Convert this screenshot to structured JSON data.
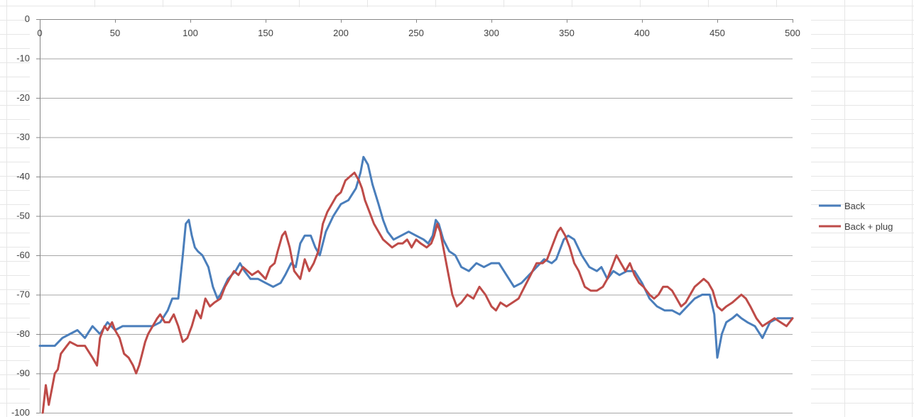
{
  "chart_data": {
    "type": "line",
    "title": "",
    "xlabel": "",
    "ylabel": "",
    "xlim": [
      0,
      500
    ],
    "ylim": [
      -100,
      0
    ],
    "x_ticks": [
      0,
      50,
      100,
      150,
      200,
      250,
      300,
      350,
      400,
      450,
      500
    ],
    "y_ticks": [
      0,
      -10,
      -20,
      -30,
      -40,
      -50,
      -60,
      -70,
      -80,
      -90,
      -100
    ],
    "x_axis_position": "top",
    "grid": true,
    "legend_position": "right",
    "series": [
      {
        "name": "Back",
        "color": "#4a7ebb",
        "points": [
          [
            0,
            -83
          ],
          [
            5,
            -83
          ],
          [
            10,
            -83
          ],
          [
            15,
            -81
          ],
          [
            20,
            -80
          ],
          [
            25,
            -79
          ],
          [
            30,
            -81
          ],
          [
            35,
            -78
          ],
          [
            40,
            -80
          ],
          [
            45,
            -77
          ],
          [
            50,
            -79
          ],
          [
            55,
            -78
          ],
          [
            60,
            -78
          ],
          [
            65,
            -78
          ],
          [
            70,
            -78
          ],
          [
            75,
            -78
          ],
          [
            80,
            -77
          ],
          [
            85,
            -74
          ],
          [
            88,
            -71
          ],
          [
            92,
            -71
          ],
          [
            95,
            -60
          ],
          [
            97,
            -52
          ],
          [
            99,
            -51
          ],
          [
            101,
            -55
          ],
          [
            103,
            -58
          ],
          [
            105,
            -59
          ],
          [
            108,
            -60
          ],
          [
            112,
            -63
          ],
          [
            115,
            -68
          ],
          [
            118,
            -71
          ],
          [
            120,
            -70
          ],
          [
            125,
            -66
          ],
          [
            130,
            -64
          ],
          [
            133,
            -62
          ],
          [
            136,
            -64
          ],
          [
            140,
            -66
          ],
          [
            145,
            -66
          ],
          [
            150,
            -67
          ],
          [
            155,
            -68
          ],
          [
            160,
            -67
          ],
          [
            163,
            -65
          ],
          [
            167,
            -62
          ],
          [
            170,
            -63
          ],
          [
            173,
            -57
          ],
          [
            176,
            -55
          ],
          [
            180,
            -55
          ],
          [
            183,
            -58
          ],
          [
            186,
            -60
          ],
          [
            190,
            -54
          ],
          [
            195,
            -50
          ],
          [
            200,
            -47
          ],
          [
            205,
            -46
          ],
          [
            210,
            -43
          ],
          [
            213,
            -39
          ],
          [
            215,
            -35
          ],
          [
            218,
            -37
          ],
          [
            221,
            -42
          ],
          [
            225,
            -47
          ],
          [
            228,
            -51
          ],
          [
            231,
            -54
          ],
          [
            235,
            -56
          ],
          [
            240,
            -55
          ],
          [
            245,
            -54
          ],
          [
            250,
            -55
          ],
          [
            255,
            -56
          ],
          [
            258,
            -57
          ],
          [
            261,
            -55
          ],
          [
            263,
            -51
          ],
          [
            265,
            -52
          ],
          [
            268,
            -56
          ],
          [
            272,
            -59
          ],
          [
            276,
            -60
          ],
          [
            280,
            -63
          ],
          [
            285,
            -64
          ],
          [
            290,
            -62
          ],
          [
            295,
            -63
          ],
          [
            300,
            -62
          ],
          [
            305,
            -62
          ],
          [
            310,
            -65
          ],
          [
            315,
            -68
          ],
          [
            320,
            -67
          ],
          [
            325,
            -65
          ],
          [
            330,
            -63
          ],
          [
            335,
            -61
          ],
          [
            340,
            -62
          ],
          [
            343,
            -61
          ],
          [
            348,
            -56
          ],
          [
            351,
            -55
          ],
          [
            355,
            -56
          ],
          [
            360,
            -60
          ],
          [
            365,
            -63
          ],
          [
            370,
            -64
          ],
          [
            373,
            -63
          ],
          [
            377,
            -66
          ],
          [
            381,
            -64
          ],
          [
            385,
            -65
          ],
          [
            390,
            -64
          ],
          [
            395,
            -64
          ],
          [
            400,
            -67
          ],
          [
            405,
            -71
          ],
          [
            410,
            -73
          ],
          [
            415,
            -74
          ],
          [
            420,
            -74
          ],
          [
            425,
            -75
          ],
          [
            430,
            -73
          ],
          [
            435,
            -71
          ],
          [
            440,
            -70
          ],
          [
            445,
            -70
          ],
          [
            448,
            -75
          ],
          [
            450,
            -86
          ],
          [
            453,
            -80
          ],
          [
            456,
            -77
          ],
          [
            460,
            -76
          ],
          [
            463,
            -75
          ],
          [
            466,
            -76
          ],
          [
            470,
            -77
          ],
          [
            475,
            -78
          ],
          [
            480,
            -81
          ],
          [
            485,
            -77
          ],
          [
            490,
            -76
          ],
          [
            495,
            -76
          ],
          [
            500,
            -76
          ]
        ]
      },
      {
        "name": "Back + plug",
        "color": "#be4b48",
        "points": [
          [
            2,
            -100
          ],
          [
            4,
            -93
          ],
          [
            6,
            -98
          ],
          [
            8,
            -94
          ],
          [
            10,
            -90
          ],
          [
            12,
            -89
          ],
          [
            14,
            -85
          ],
          [
            16,
            -84
          ],
          [
            18,
            -83
          ],
          [
            20,
            -82
          ],
          [
            25,
            -83
          ],
          [
            30,
            -83
          ],
          [
            35,
            -86
          ],
          [
            38,
            -88
          ],
          [
            40,
            -81
          ],
          [
            43,
            -78
          ],
          [
            45,
            -79
          ],
          [
            48,
            -77
          ],
          [
            50,
            -79
          ],
          [
            53,
            -81
          ],
          [
            56,
            -85
          ],
          [
            59,
            -86
          ],
          [
            62,
            -88
          ],
          [
            64,
            -90
          ],
          [
            66,
            -88
          ],
          [
            68,
            -85
          ],
          [
            70,
            -82
          ],
          [
            72,
            -80
          ],
          [
            75,
            -78
          ],
          [
            78,
            -76
          ],
          [
            80,
            -75
          ],
          [
            83,
            -77
          ],
          [
            86,
            -77
          ],
          [
            89,
            -75
          ],
          [
            92,
            -78
          ],
          [
            95,
            -82
          ],
          [
            98,
            -81
          ],
          [
            101,
            -78
          ],
          [
            104,
            -74
          ],
          [
            107,
            -76
          ],
          [
            110,
            -71
          ],
          [
            113,
            -73
          ],
          [
            116,
            -72
          ],
          [
            120,
            -71
          ],
          [
            123,
            -68
          ],
          [
            126,
            -66
          ],
          [
            129,
            -64
          ],
          [
            132,
            -65
          ],
          [
            135,
            -63
          ],
          [
            138,
            -64
          ],
          [
            141,
            -65
          ],
          [
            145,
            -64
          ],
          [
            150,
            -66
          ],
          [
            153,
            -63
          ],
          [
            156,
            -62
          ],
          [
            158,
            -59
          ],
          [
            161,
            -55
          ],
          [
            163,
            -54
          ],
          [
            166,
            -58
          ],
          [
            169,
            -64
          ],
          [
            173,
            -66
          ],
          [
            176,
            -61
          ],
          [
            179,
            -64
          ],
          [
            182,
            -62
          ],
          [
            185,
            -59
          ],
          [
            188,
            -52
          ],
          [
            191,
            -49
          ],
          [
            194,
            -47
          ],
          [
            197,
            -45
          ],
          [
            200,
            -44
          ],
          [
            203,
            -41
          ],
          [
            206,
            -40
          ],
          [
            209,
            -39
          ],
          [
            212,
            -41
          ],
          [
            214,
            -43
          ],
          [
            216,
            -46
          ],
          [
            219,
            -49
          ],
          [
            222,
            -52
          ],
          [
            225,
            -54
          ],
          [
            228,
            -56
          ],
          [
            231,
            -57
          ],
          [
            234,
            -58
          ],
          [
            238,
            -57
          ],
          [
            241,
            -57
          ],
          [
            244,
            -56
          ],
          [
            247,
            -58
          ],
          [
            250,
            -56
          ],
          [
            253,
            -57
          ],
          [
            257,
            -58
          ],
          [
            260,
            -57
          ],
          [
            262,
            -55
          ],
          [
            264,
            -52
          ],
          [
            266,
            -54
          ],
          [
            268,
            -58
          ],
          [
            271,
            -64
          ],
          [
            274,
            -70
          ],
          [
            277,
            -73
          ],
          [
            280,
            -72
          ],
          [
            284,
            -70
          ],
          [
            288,
            -71
          ],
          [
            292,
            -68
          ],
          [
            296,
            -70
          ],
          [
            300,
            -73
          ],
          [
            303,
            -74
          ],
          [
            306,
            -72
          ],
          [
            310,
            -73
          ],
          [
            314,
            -72
          ],
          [
            318,
            -71
          ],
          [
            322,
            -68
          ],
          [
            326,
            -65
          ],
          [
            330,
            -62
          ],
          [
            334,
            -62
          ],
          [
            337,
            -61
          ],
          [
            340,
            -58
          ],
          [
            342,
            -56
          ],
          [
            344,
            -54
          ],
          [
            346,
            -53
          ],
          [
            349,
            -55
          ],
          [
            352,
            -58
          ],
          [
            355,
            -62
          ],
          [
            358,
            -64
          ],
          [
            362,
            -68
          ],
          [
            366,
            -69
          ],
          [
            370,
            -69
          ],
          [
            374,
            -68
          ],
          [
            377,
            -66
          ],
          [
            380,
            -63
          ],
          [
            383,
            -60
          ],
          [
            386,
            -62
          ],
          [
            389,
            -64
          ],
          [
            392,
            -62
          ],
          [
            395,
            -65
          ],
          [
            398,
            -67
          ],
          [
            401,
            -68
          ],
          [
            405,
            -70
          ],
          [
            408,
            -71
          ],
          [
            411,
            -70
          ],
          [
            414,
            -68
          ],
          [
            417,
            -68
          ],
          [
            420,
            -69
          ],
          [
            423,
            -71
          ],
          [
            426,
            -73
          ],
          [
            429,
            -72
          ],
          [
            432,
            -70
          ],
          [
            435,
            -68
          ],
          [
            438,
            -67
          ],
          [
            441,
            -66
          ],
          [
            444,
            -67
          ],
          [
            447,
            -69
          ],
          [
            450,
            -73
          ],
          [
            453,
            -74
          ],
          [
            456,
            -73
          ],
          [
            460,
            -72
          ],
          [
            463,
            -71
          ],
          [
            466,
            -70
          ],
          [
            469,
            -71
          ],
          [
            472,
            -73
          ],
          [
            476,
            -76
          ],
          [
            480,
            -78
          ],
          [
            484,
            -77
          ],
          [
            488,
            -76
          ],
          [
            492,
            -77
          ],
          [
            496,
            -78
          ],
          [
            500,
            -76
          ]
        ]
      }
    ]
  }
}
